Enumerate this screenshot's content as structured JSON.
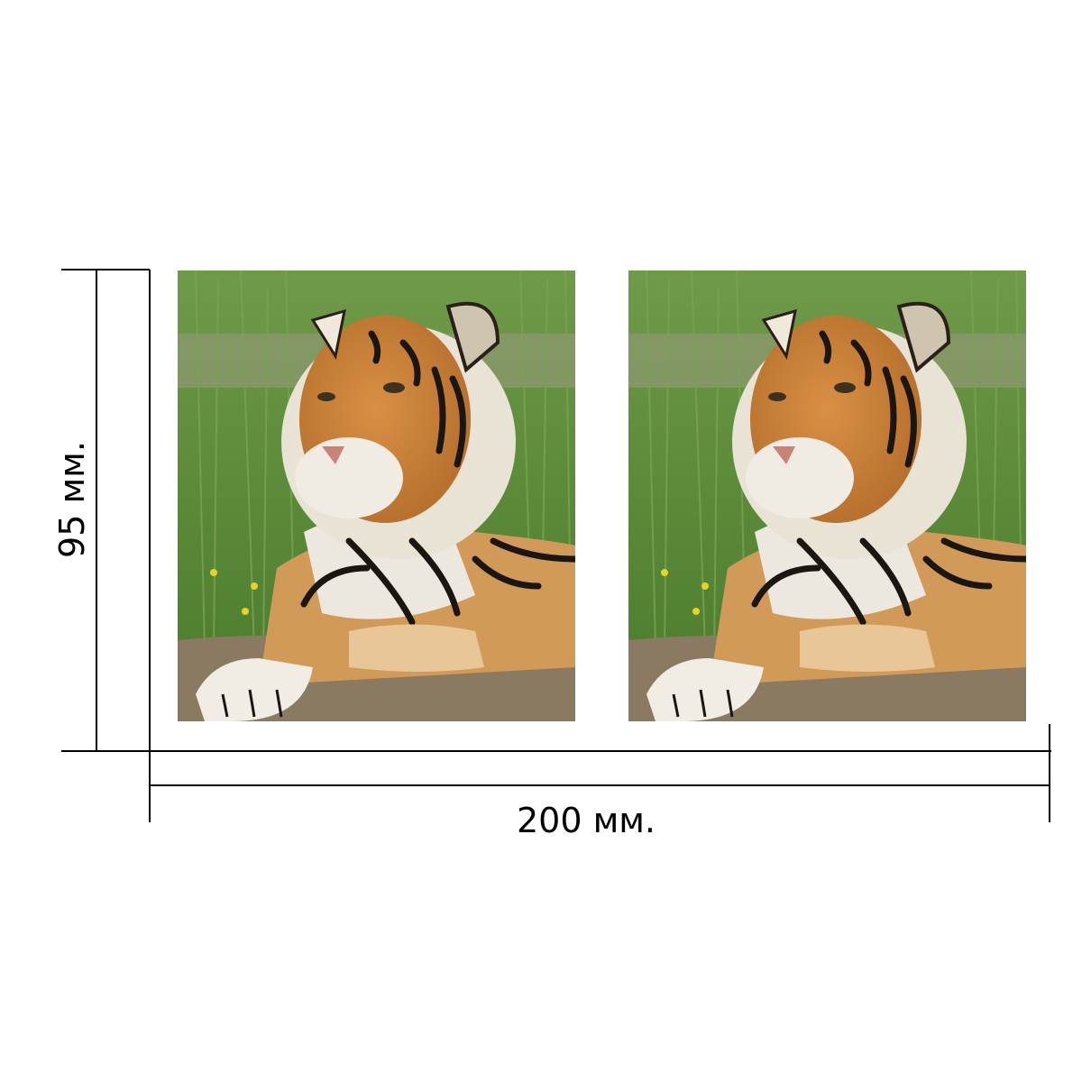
{
  "dimensions": {
    "width_label": "200 мм.",
    "height_label": "95 мм."
  },
  "panels": [
    {
      "name": "left-tiger-panel",
      "subject": "tiger-photo"
    },
    {
      "name": "right-tiger-panel",
      "subject": "tiger-photo"
    }
  ],
  "colors": {
    "line": "#000000",
    "background": "#ffffff",
    "grass": "#5e8a3a",
    "fur_orange": "#c9863f",
    "fur_white": "#ece8df",
    "stripe": "#1c1612",
    "ground": "#8a7a62"
  }
}
